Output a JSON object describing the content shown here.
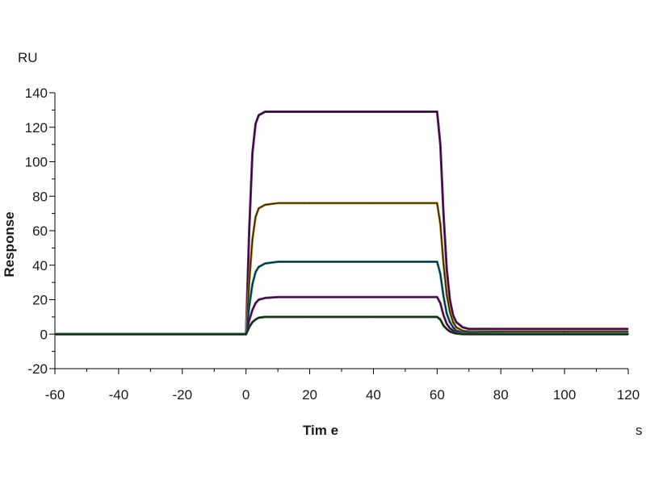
{
  "chart_data": {
    "type": "line",
    "title": "",
    "xlabel": "Tim e",
    "ylabel": "Response",
    "x_unit": "s",
    "y_unit": "RU",
    "xlim": [
      -60,
      120
    ],
    "ylim": [
      -20,
      140
    ],
    "x_ticks": [
      -60,
      -40,
      -20,
      0,
      20,
      40,
      60,
      80,
      100,
      120
    ],
    "y_ticks": [
      -20,
      0,
      20,
      40,
      60,
      80,
      100,
      120,
      140
    ],
    "x_tick_labels": [
      "-60",
      "-40",
      "-20",
      "0",
      "20",
      "40",
      "60",
      "80",
      "100",
      "120"
    ],
    "y_tick_labels": [
      "-20",
      "0",
      "20",
      "40",
      "60",
      "80",
      "100",
      "120",
      "140"
    ],
    "grid": false,
    "legend": "none",
    "series": [
      {
        "color": "#7a1f8a",
        "fit_color": "#111111",
        "x": [
          -60,
          -1,
          0,
          1,
          2,
          3,
          4,
          6,
          10,
          20,
          40,
          59,
          60,
          61,
          62,
          63,
          64,
          65,
          66,
          68,
          70,
          80,
          100,
          120
        ],
        "y": [
          0,
          0,
          0,
          60,
          105,
          122,
          127,
          129,
          129,
          129,
          129,
          129,
          129,
          110,
          70,
          38,
          20,
          11,
          7,
          4,
          3,
          3,
          3,
          3
        ]
      },
      {
        "color": "#b8860b",
        "fit_color": "#111111",
        "x": [
          -60,
          -1,
          0,
          1,
          2,
          3,
          4,
          6,
          10,
          20,
          40,
          59,
          60,
          61,
          62,
          63,
          64,
          65,
          66,
          68,
          70,
          80,
          100,
          120
        ],
        "y": [
          0,
          0,
          0,
          30,
          55,
          68,
          73,
          75,
          76,
          76,
          76,
          76,
          76,
          64,
          41,
          23,
          13,
          7,
          4,
          2,
          1.5,
          1.5,
          1.5,
          1.5
        ]
      },
      {
        "color": "#1e8fa0",
        "fit_color": "#111111",
        "x": [
          -60,
          -1,
          0,
          1,
          2,
          3,
          4,
          6,
          10,
          20,
          40,
          59,
          60,
          61,
          62,
          63,
          64,
          65,
          66,
          68,
          70,
          80,
          100,
          120
        ],
        "y": [
          0,
          0,
          0,
          16,
          29,
          36,
          39,
          41,
          42,
          42,
          42,
          42,
          42,
          35,
          22,
          12,
          7,
          4,
          2,
          1,
          0.8,
          0.5,
          0.5,
          0.5
        ]
      },
      {
        "color": "#8a2a9a",
        "fit_color": "#111111",
        "x": [
          -60,
          -1,
          0,
          1,
          2,
          3,
          4,
          6,
          10,
          20,
          40,
          59,
          60,
          61,
          62,
          63,
          64,
          65,
          66,
          68,
          70,
          80,
          100,
          120
        ],
        "y": [
          0,
          0,
          0,
          8,
          14,
          18,
          20,
          21,
          21.5,
          21.5,
          21.5,
          21.5,
          21.5,
          18,
          11,
          6,
          3.5,
          2,
          1,
          0.5,
          0,
          0,
          0,
          0
        ]
      },
      {
        "color": "#2a6a2a",
        "fit_color": "#111111",
        "x": [
          -60,
          -1,
          0,
          1,
          2,
          3,
          4,
          6,
          10,
          20,
          40,
          59,
          60,
          61,
          62,
          63,
          64,
          65,
          66,
          68,
          70,
          80,
          100,
          120
        ],
        "y": [
          0,
          0,
          0,
          4,
          7,
          8.5,
          9.5,
          10,
          10,
          10,
          10,
          10,
          10,
          8.5,
          5,
          3,
          1.5,
          0.8,
          0.4,
          0,
          0,
          0,
          0,
          0
        ]
      }
    ]
  }
}
